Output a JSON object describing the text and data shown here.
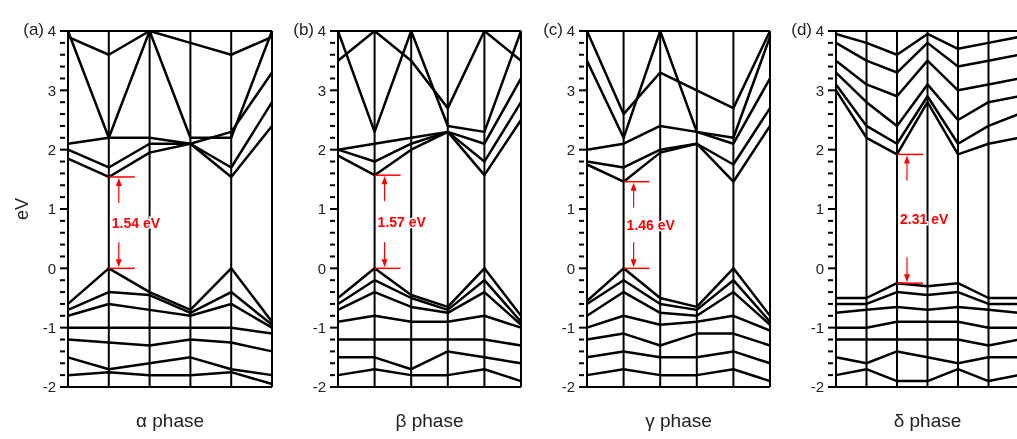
{
  "chart_data": [
    {
      "type": "line",
      "title": "(a)",
      "ylabel": "eV",
      "xlabel": "α phase",
      "ylim": [
        -2,
        4
      ],
      "tick_labels": "y",
      "grid": "x",
      "marker": "none",
      "line_style": "solid",
      "yticks": [
        -2,
        {
          "value": -1.8,
          "label": null
        },
        {
          "value": -1.6,
          "label": null
        },
        {
          "value": -1.4,
          "label": null
        },
        {
          "value": -1.2,
          "label": null
        },
        -1,
        {
          "value": -0.8,
          "label": null
        },
        {
          "value": -0.6,
          "label": null
        },
        {
          "value": -0.4,
          "label": null
        },
        {
          "value": -0.2,
          "label": null
        },
        0,
        {
          "value": 0.2,
          "label": null
        },
        {
          "value": 0.4,
          "label": null
        },
        {
          "value": 0.6,
          "label": null
        },
        {
          "value": 0.8,
          "label": null
        },
        1,
        {
          "value": 1.2,
          "label": null
        },
        {
          "value": 1.4,
          "label": null
        },
        {
          "value": 1.6,
          "label": null
        },
        {
          "value": 1.8,
          "label": null
        },
        2,
        {
          "value": 2.2,
          "label": null
        },
        {
          "value": 2.4,
          "label": null
        },
        {
          "value": 2.6,
          "label": null
        },
        {
          "value": 2.8,
          "label": null
        },
        3,
        {
          "value": 3.2,
          "label": null
        },
        {
          "value": 3.4,
          "label": null
        },
        {
          "value": 3.6,
          "label": null
        },
        {
          "value": 3.8,
          "label": null
        },
        4
      ],
      "categories": [
        null,
        null,
        null,
        null,
        null,
        null
      ],
      "annotations": [
        "1.54 eV"
      ],
      "series": [
        {
          "color": "#000000",
          "values": [
            1.85,
            1.54,
            1.95,
            2.1,
            1.54,
            2.4
          ]
        },
        {
          "color": "#000000",
          "values": [
            2.0,
            1.7,
            2.1,
            2.1,
            1.7,
            2.8
          ]
        },
        {
          "color": "#000000",
          "values": [
            2.1,
            2.2,
            2.2,
            2.1,
            2.3,
            3.3
          ]
        },
        {
          "color": "#000000",
          "values": [
            4.0,
            2.2,
            4.0,
            2.2,
            2.2,
            4.0
          ]
        },
        {
          "color": "#000000",
          "values": [
            3.9,
            3.6,
            4.0,
            3.8,
            3.6,
            3.9
          ]
        },
        {
          "color": "#000000",
          "values": [
            -0.6,
            0,
            -0.4,
            -0.7,
            0,
            -0.9
          ]
        },
        {
          "color": "#000000",
          "values": [
            -0.7,
            -0.4,
            -0.45,
            -0.75,
            -0.4,
            -0.95
          ]
        },
        {
          "color": "#000000",
          "values": [
            -0.8,
            -0.6,
            -0.7,
            -0.8,
            -0.6,
            -1.0
          ]
        },
        {
          "color": "#000000",
          "values": [
            -1.0,
            -1.0,
            -1.0,
            -1.0,
            -1.0,
            -1.1
          ]
        },
        {
          "color": "#000000",
          "values": [
            -1.2,
            -1.25,
            -1.3,
            -1.2,
            -1.25,
            -1.4
          ]
        },
        {
          "color": "#000000",
          "values": [
            -1.5,
            -1.7,
            -1.6,
            -1.5,
            -1.7,
            -1.8
          ]
        },
        {
          "color": "#000000",
          "values": [
            -1.8,
            -1.75,
            -1.8,
            -1.8,
            -1.75,
            -1.95
          ]
        }
      ]
    },
    {
      "type": "line",
      "title": "(b)",
      "xlabel": "β phase",
      "ylim": [
        -2,
        4
      ],
      "tick_labels": "y",
      "grid": "x",
      "marker": "none",
      "line_style": "solid",
      "yticks": [
        -2,
        {
          "value": -1.8,
          "label": null
        },
        {
          "value": -1.6,
          "label": null
        },
        {
          "value": -1.4,
          "label": null
        },
        {
          "value": -1.2,
          "label": null
        },
        -1,
        {
          "value": -0.8,
          "label": null
        },
        {
          "value": -0.6,
          "label": null
        },
        {
          "value": -0.4,
          "label": null
        },
        {
          "value": -0.2,
          "label": null
        },
        0,
        {
          "value": 0.2,
          "label": null
        },
        {
          "value": 0.4,
          "label": null
        },
        {
          "value": 0.6,
          "label": null
        },
        {
          "value": 0.8,
          "label": null
        },
        1,
        {
          "value": 1.2,
          "label": null
        },
        {
          "value": 1.4,
          "label": null
        },
        {
          "value": 1.6,
          "label": null
        },
        {
          "value": 1.8,
          "label": null
        },
        2,
        {
          "value": 2.2,
          "label": null
        },
        {
          "value": 2.4,
          "label": null
        },
        {
          "value": 2.6,
          "label": null
        },
        {
          "value": 2.8,
          "label": null
        },
        3,
        {
          "value": 3.2,
          "label": null
        },
        {
          "value": 3.4,
          "label": null
        },
        {
          "value": 3.6,
          "label": null
        },
        {
          "value": 3.8,
          "label": null
        },
        4
      ],
      "categories": [
        null,
        null,
        null,
        null,
        null,
        null
      ],
      "annotations": [
        "1.57 eV"
      ],
      "series": [
        {
          "color": "#000000",
          "values": [
            1.9,
            1.57,
            2.0,
            2.3,
            1.57,
            2.5
          ]
        },
        {
          "color": "#000000",
          "values": [
            2.0,
            1.8,
            2.1,
            2.3,
            1.8,
            2.8
          ]
        },
        {
          "color": "#000000",
          "values": [
            2.0,
            2.1,
            2.2,
            2.3,
            2.1,
            3.2
          ]
        },
        {
          "color": "#000000",
          "values": [
            4.0,
            2.3,
            4.0,
            2.4,
            2.3,
            4.0
          ]
        },
        {
          "color": "#000000",
          "values": [
            3.5,
            4.0,
            3.5,
            2.7,
            4.0,
            3.5
          ]
        },
        {
          "color": "#000000",
          "values": [
            -0.5,
            0,
            -0.45,
            -0.65,
            0,
            -0.8
          ]
        },
        {
          "color": "#000000",
          "values": [
            -0.6,
            -0.2,
            -0.5,
            -0.7,
            -0.2,
            -0.9
          ]
        },
        {
          "color": "#000000",
          "values": [
            -0.7,
            -0.4,
            -0.65,
            -0.75,
            -0.4,
            -0.95
          ]
        },
        {
          "color": "#000000",
          "values": [
            -0.9,
            -0.8,
            -0.9,
            -0.9,
            -0.8,
            -1.0
          ]
        },
        {
          "color": "#000000",
          "values": [
            -1.2,
            -1.2,
            -1.2,
            -1.2,
            -1.2,
            -1.3
          ]
        },
        {
          "color": "#000000",
          "values": [
            -1.5,
            -1.5,
            -1.7,
            -1.4,
            -1.5,
            -1.6
          ]
        },
        {
          "color": "#000000",
          "values": [
            -1.8,
            -1.7,
            -1.8,
            -1.8,
            -1.7,
            -1.9
          ]
        }
      ]
    },
    {
      "type": "line",
      "title": "(c)",
      "xlabel": "γ phase",
      "ylim": [
        -2,
        4
      ],
      "tick_labels": "y",
      "grid": "x",
      "marker": "none",
      "line_style": "solid",
      "yticks": [
        -2,
        {
          "value": -1.8,
          "label": null
        },
        {
          "value": -1.6,
          "label": null
        },
        {
          "value": -1.4,
          "label": null
        },
        {
          "value": -1.2,
          "label": null
        },
        -1,
        {
          "value": -0.8,
          "label": null
        },
        {
          "value": -0.6,
          "label": null
        },
        {
          "value": -0.4,
          "label": null
        },
        {
          "value": -0.2,
          "label": null
        },
        0,
        {
          "value": 0.2,
          "label": null
        },
        {
          "value": 0.4,
          "label": null
        },
        {
          "value": 0.6,
          "label": null
        },
        {
          "value": 0.8,
          "label": null
        },
        1,
        {
          "value": 1.2,
          "label": null
        },
        {
          "value": 1.4,
          "label": null
        },
        {
          "value": 1.6,
          "label": null
        },
        {
          "value": 1.8,
          "label": null
        },
        2,
        {
          "value": 2.2,
          "label": null
        },
        {
          "value": 2.4,
          "label": null
        },
        {
          "value": 2.6,
          "label": null
        },
        {
          "value": 2.8,
          "label": null
        },
        3,
        {
          "value": 3.2,
          "label": null
        },
        {
          "value": 3.4,
          "label": null
        },
        {
          "value": 3.6,
          "label": null
        },
        {
          "value": 3.8,
          "label": null
        },
        4
      ],
      "categories": [
        null,
        null,
        null,
        null,
        null,
        null
      ],
      "annotations": [
        "1.46 eV"
      ],
      "series": [
        {
          "color": "#000000",
          "values": [
            1.75,
            1.46,
            1.95,
            2.1,
            1.46,
            2.4
          ]
        },
        {
          "color": "#000000",
          "values": [
            1.8,
            1.7,
            2.0,
            2.1,
            1.75,
            2.7
          ]
        },
        {
          "color": "#000000",
          "values": [
            2.0,
            2.1,
            2.4,
            2.3,
            2.1,
            3.2
          ]
        },
        {
          "color": "#000000",
          "values": [
            3.5,
            2.2,
            4.0,
            2.3,
            2.2,
            3.9
          ]
        },
        {
          "color": "#000000",
          "values": [
            4.0,
            2.6,
            3.3,
            3.0,
            2.7,
            4.0
          ]
        },
        {
          "color": "#000000",
          "values": [
            -0.55,
            0,
            -0.5,
            -0.65,
            0,
            -0.8
          ]
        },
        {
          "color": "#000000",
          "values": [
            -0.6,
            -0.2,
            -0.6,
            -0.7,
            -0.2,
            -0.9
          ]
        },
        {
          "color": "#000000",
          "values": [
            -0.8,
            -0.4,
            -0.75,
            -0.8,
            -0.4,
            -0.95
          ]
        },
        {
          "color": "#000000",
          "values": [
            -1.0,
            -0.8,
            -0.95,
            -0.9,
            -0.8,
            -1.05
          ]
        },
        {
          "color": "#000000",
          "values": [
            -1.2,
            -1.1,
            -1.3,
            -1.1,
            -1.1,
            -1.3
          ]
        },
        {
          "color": "#000000",
          "values": [
            -1.5,
            -1.4,
            -1.5,
            -1.5,
            -1.4,
            -1.6
          ]
        },
        {
          "color": "#000000",
          "values": [
            -1.8,
            -1.7,
            -1.8,
            -1.8,
            -1.7,
            -1.9
          ]
        }
      ]
    },
    {
      "type": "line",
      "title": "(d)",
      "xlabel": "δ phase",
      "ylim": [
        -2,
        4
      ],
      "tick_labels": "y",
      "grid": "x",
      "marker": "none",
      "line_style": "solid",
      "yticks": [
        -2,
        {
          "value": -1.8,
          "label": null
        },
        {
          "value": -1.6,
          "label": null
        },
        {
          "value": -1.4,
          "label": null
        },
        {
          "value": -1.2,
          "label": null
        },
        -1,
        {
          "value": -0.8,
          "label": null
        },
        {
          "value": -0.6,
          "label": null
        },
        {
          "value": -0.4,
          "label": null
        },
        {
          "value": -0.2,
          "label": null
        },
        0,
        {
          "value": 0.2,
          "label": null
        },
        {
          "value": 0.4,
          "label": null
        },
        {
          "value": 0.6,
          "label": null
        },
        {
          "value": 0.8,
          "label": null
        },
        1,
        {
          "value": 1.2,
          "label": null
        },
        {
          "value": 1.4,
          "label": null
        },
        {
          "value": 1.6,
          "label": null
        },
        {
          "value": 1.8,
          "label": null
        },
        2,
        {
          "value": 2.2,
          "label": null
        },
        {
          "value": 2.4,
          "label": null
        },
        {
          "value": 2.6,
          "label": null
        },
        {
          "value": 2.8,
          "label": null
        },
        3,
        {
          "value": 3.2,
          "label": null
        },
        {
          "value": 3.4,
          "label": null
        },
        {
          "value": 3.6,
          "label": null
        },
        {
          "value": 3.8,
          "label": null
        },
        4
      ],
      "categories": [
        null,
        null,
        null,
        null,
        null,
        null,
        null
      ],
      "annotations": [
        "2.31 eV"
      ],
      "series": [
        {
          "color": "#000000",
          "values": [
            3.0,
            2.2,
            1.92,
            2.8,
            1.92,
            2.1,
            2.2
          ]
        },
        {
          "color": "#000000",
          "values": [
            3.1,
            2.4,
            2.1,
            2.9,
            2.1,
            2.4,
            2.6
          ]
        },
        {
          "color": "#000000",
          "values": [
            3.3,
            2.8,
            2.4,
            3.1,
            2.5,
            2.8,
            2.9
          ]
        },
        {
          "color": "#000000",
          "values": [
            3.5,
            3.1,
            2.9,
            3.5,
            3.0,
            3.1,
            3.2
          ]
        },
        {
          "color": "#000000",
          "values": [
            3.8,
            3.5,
            3.3,
            3.8,
            3.4,
            3.5,
            3.6
          ]
        },
        {
          "color": "#000000",
          "values": [
            3.95,
            3.8,
            3.6,
            3.95,
            3.7,
            3.8,
            3.9
          ]
        },
        {
          "color": "#000000",
          "values": [
            -0.5,
            -0.5,
            -0.25,
            -0.3,
            -0.25,
            -0.5,
            -0.5
          ]
        },
        {
          "color": "#000000",
          "values": [
            -0.6,
            -0.6,
            -0.4,
            -0.45,
            -0.4,
            -0.6,
            -0.6
          ]
        },
        {
          "color": "#000000",
          "values": [
            -0.75,
            -0.7,
            -0.65,
            -0.7,
            -0.65,
            -0.7,
            -0.75
          ]
        },
        {
          "color": "#000000",
          "values": [
            -1.0,
            -1.0,
            -0.9,
            -0.9,
            -0.9,
            -1.0,
            -1.0
          ]
        },
        {
          "color": "#000000",
          "values": [
            -1.2,
            -1.2,
            -1.2,
            -1.2,
            -1.2,
            -1.3,
            -1.2
          ]
        },
        {
          "color": "#000000",
          "values": [
            -1.5,
            -1.6,
            -1.4,
            -1.5,
            -1.6,
            -1.5,
            -1.5
          ]
        },
        {
          "color": "#000000",
          "values": [
            -1.8,
            -1.7,
            -1.9,
            -1.9,
            -1.7,
            -1.9,
            -1.8
          ]
        }
      ]
    }
  ]
}
